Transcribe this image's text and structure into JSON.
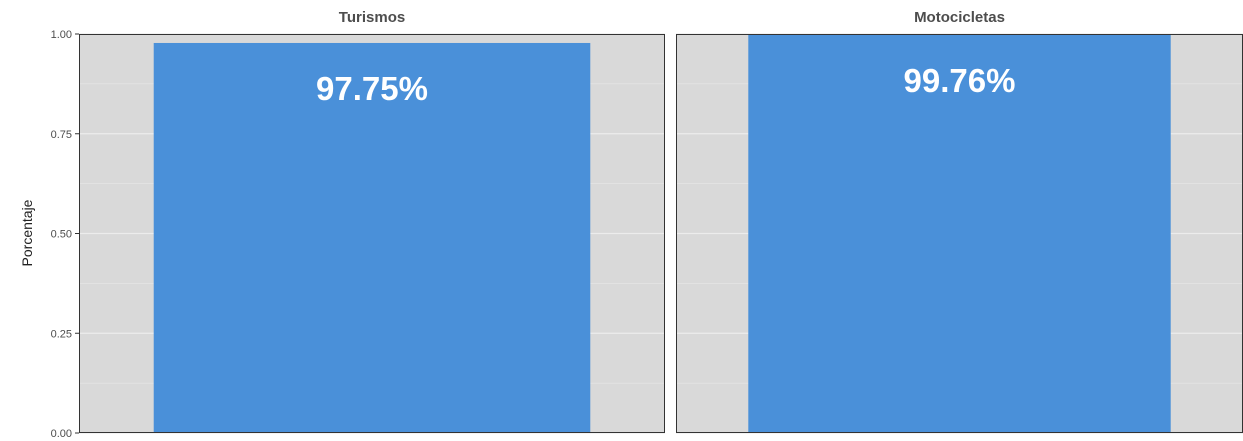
{
  "chart_data": {
    "type": "bar",
    "ylabel": "Porcentaje",
    "ylim": [
      0,
      1
    ],
    "yticks": [
      "0.00",
      "0.25",
      "0.50",
      "0.75",
      "1.00"
    ],
    "y_tick_values": [
      0,
      0.25,
      0.5,
      0.75,
      1
    ],
    "grid": true,
    "panels": [
      {
        "title": "Turismos",
        "value": 0.9775,
        "label": "97.75%"
      },
      {
        "title": "Motocicletas",
        "value": 0.9976,
        "label": "99.76%"
      }
    ]
  },
  "colors": {
    "bar": "#4a90d9",
    "panel_background": "#d9d9d9",
    "grid": "#ececec",
    "panel_border": "#333333"
  }
}
